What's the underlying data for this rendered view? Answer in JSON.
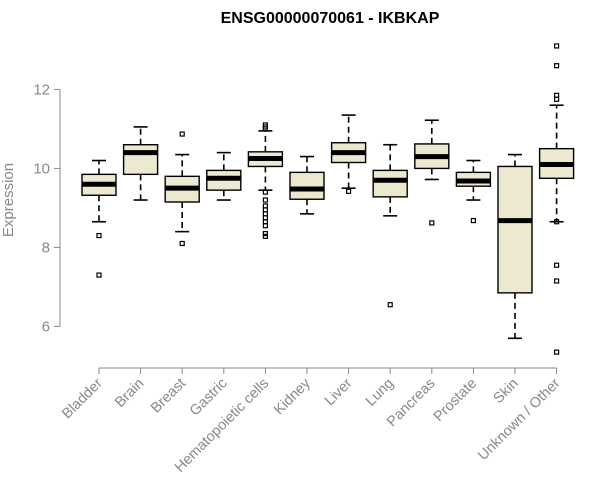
{
  "chart_data": {
    "type": "boxplot",
    "title": "ENSG00000070061 - IKBKAP",
    "xlabel": "",
    "ylabel": "Expression",
    "ylim": [
      5.1,
      13.2
    ],
    "yticks": [
      6,
      8,
      10,
      12
    ],
    "grid": false,
    "box_fill": "#EDE8D0",
    "categories": [
      "Bladder",
      "Brain",
      "Breast",
      "Gastric",
      "Hematopoietic cells",
      "Kidney",
      "Liver",
      "Lung",
      "Pancreas",
      "Prostate",
      "Skin",
      "Unknown / Other"
    ],
    "boxes": [
      {
        "whisker_low": 8.65,
        "q1": 9.32,
        "median": 9.6,
        "q3": 9.85,
        "whisker_high": 10.2,
        "outliers": [
          8.3,
          7.3
        ]
      },
      {
        "whisker_low": 9.2,
        "q1": 9.85,
        "median": 10.4,
        "q3": 10.6,
        "whisker_high": 11.05,
        "outliers": []
      },
      {
        "whisker_low": 8.4,
        "q1": 9.15,
        "median": 9.5,
        "q3": 9.8,
        "whisker_high": 10.35,
        "outliers": [
          10.87,
          8.1
        ]
      },
      {
        "whisker_low": 9.2,
        "q1": 9.45,
        "median": 9.75,
        "q3": 9.95,
        "whisker_high": 10.4,
        "outliers": []
      },
      {
        "whisker_low": 9.45,
        "q1": 10.05,
        "median": 10.25,
        "q3": 10.42,
        "whisker_high": 10.95,
        "outliers": [
          11.1,
          11.05,
          11.0,
          9.4,
          9.2,
          9.05,
          8.95,
          8.85,
          8.75,
          8.65,
          8.55,
          8.35,
          8.28
        ]
      },
      {
        "whisker_low": 8.85,
        "q1": 9.22,
        "median": 9.48,
        "q3": 9.9,
        "whisker_high": 10.3,
        "outliers": []
      },
      {
        "whisker_low": 9.5,
        "q1": 10.15,
        "median": 10.4,
        "q3": 10.65,
        "whisker_high": 11.35,
        "outliers": [
          9.42
        ]
      },
      {
        "whisker_low": 8.8,
        "q1": 9.28,
        "median": 9.7,
        "q3": 9.95,
        "whisker_high": 10.6,
        "outliers": [
          6.55
        ]
      },
      {
        "whisker_low": 9.72,
        "q1": 10.0,
        "median": 10.3,
        "q3": 10.62,
        "whisker_high": 11.22,
        "outliers": [
          8.62
        ]
      },
      {
        "whisker_low": 9.2,
        "q1": 9.55,
        "median": 9.68,
        "q3": 9.9,
        "whisker_high": 10.2,
        "outliers": [
          8.68
        ]
      },
      {
        "whisker_low": 5.7,
        "q1": 6.85,
        "median": 8.68,
        "q3": 10.05,
        "whisker_high": 10.35,
        "outliers": []
      },
      {
        "whisker_low": 8.65,
        "q1": 9.75,
        "median": 10.1,
        "q3": 10.5,
        "whisker_high": 11.6,
        "outliers": [
          13.1,
          12.6,
          11.85,
          11.75,
          8.65,
          7.55,
          7.15,
          5.35
        ]
      }
    ]
  }
}
